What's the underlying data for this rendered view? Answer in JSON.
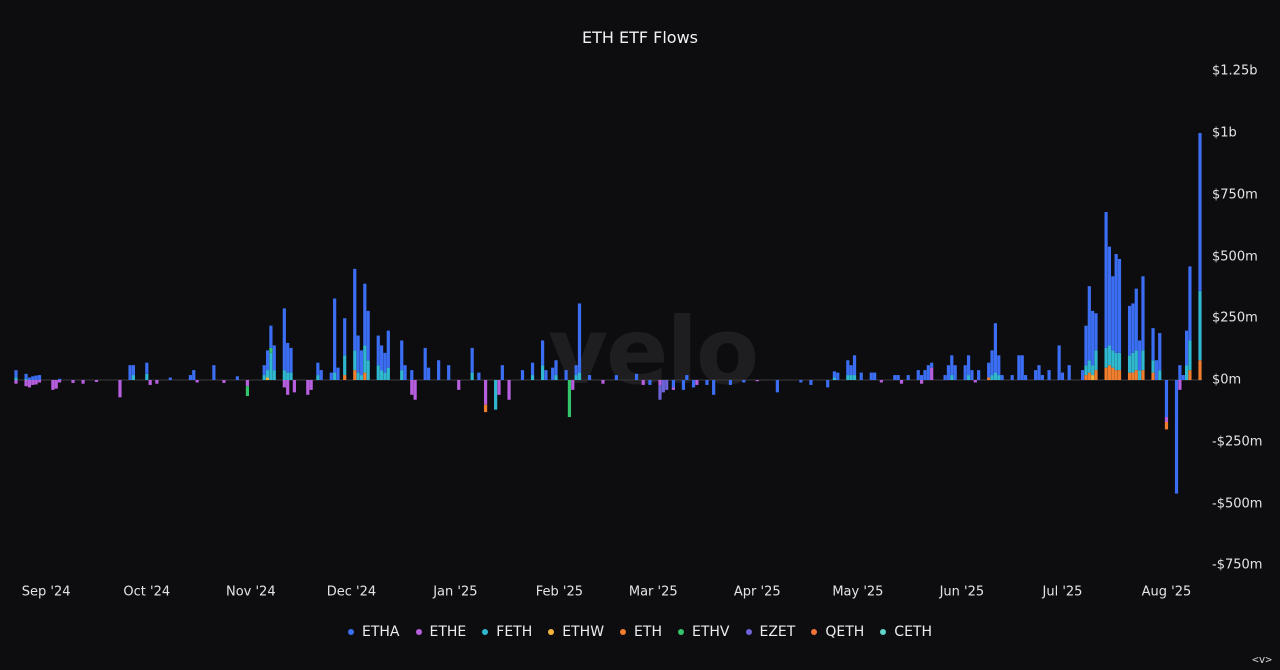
{
  "title": "ETH ETF Flows",
  "watermark": "velo",
  "nav": "<v>",
  "chart_data": {
    "type": "bar",
    "stacked": true,
    "title": "ETH ETF Flows",
    "xlabel": "",
    "ylabel": "",
    "ylim": [
      -800,
      1250
    ],
    "grid": false,
    "legend_position": "bottom",
    "y_ticks": [
      {
        "value": 1250,
        "label": "$1.25b"
      },
      {
        "value": 1000,
        "label": "$1b"
      },
      {
        "value": 750,
        "label": "$750m"
      },
      {
        "value": 500,
        "label": "$500m"
      },
      {
        "value": 250,
        "label": "$250m"
      },
      {
        "value": 0,
        "label": "$0m"
      },
      {
        "value": -250,
        "label": "-$250m"
      },
      {
        "value": -500,
        "label": "-$500m"
      },
      {
        "value": -750,
        "label": "-$750m"
      }
    ],
    "x_ticks": [
      {
        "date": "2024-09-01",
        "label": "Sep '24"
      },
      {
        "date": "2024-10-01",
        "label": "Oct '24"
      },
      {
        "date": "2024-11-01",
        "label": "Nov '24"
      },
      {
        "date": "2024-12-01",
        "label": "Dec '24"
      },
      {
        "date": "2025-01-01",
        "label": "Jan '25"
      },
      {
        "date": "2025-02-01",
        "label": "Feb '25"
      },
      {
        "date": "2025-03-01",
        "label": "Mar '25"
      },
      {
        "date": "2025-04-01",
        "label": "Apr '25"
      },
      {
        "date": "2025-05-01",
        "label": "May '25"
      },
      {
        "date": "2025-06-01",
        "label": "Jun '25"
      },
      {
        "date": "2025-07-01",
        "label": "Jul '25"
      },
      {
        "date": "2025-08-01",
        "label": "Aug '25"
      }
    ],
    "series_names": [
      "ETHA",
      "ETHE",
      "FETH",
      "ETHW",
      "ETH",
      "ETHV",
      "EZET",
      "QETH",
      "CETH"
    ],
    "colors": {
      "ETHA": "#3b6ef2",
      "ETHE": "#b85fe0",
      "FETH": "#2fb8d0",
      "ETHW": "#f5b43a",
      "ETH": "#f07e2e",
      "ETHV": "#34c46a",
      "EZET": "#6c63d8",
      "QETH": "#f0743a",
      "CETH": "#5fd6c8"
    },
    "positive_total_order": [
      "ETH",
      "ETHW",
      "FETH",
      "ETHA"
    ],
    "net_daily_flows": [
      {
        "date": "2024-08-23",
        "ETHA": 30,
        "ETHE": -15,
        "FETH": 10
      },
      {
        "date": "2024-08-26",
        "ETHA": 20,
        "ETHE": -25,
        "FETH": 5
      },
      {
        "date": "2024-08-27",
        "ETHA": 10,
        "ETHE": -30
      },
      {
        "date": "2024-08-28",
        "ETHA": 15,
        "ETHE": -20
      },
      {
        "date": "2024-08-29",
        "ETHA": 18,
        "ETHE": -18
      },
      {
        "date": "2024-08-30",
        "ETHA": 20,
        "ETHE": -10
      },
      {
        "date": "2024-09-03",
        "ETHE": -40
      },
      {
        "date": "2024-09-04",
        "ETHE": -35
      },
      {
        "date": "2024-09-05",
        "ETHA": 5,
        "ETHE": -10
      },
      {
        "date": "2024-09-09",
        "ETHE": -12
      },
      {
        "date": "2024-09-12",
        "ETHE": -15
      },
      {
        "date": "2024-09-16",
        "ETHE": -8
      },
      {
        "date": "2024-09-23",
        "ETHE": -70
      },
      {
        "date": "2024-09-26",
        "ETHA": 60
      },
      {
        "date": "2024-09-27",
        "ETHA": 40,
        "FETH": 20
      },
      {
        "date": "2024-10-01",
        "ETHA": 45,
        "FETH": 25
      },
      {
        "date": "2024-10-02",
        "ETHE": -20
      },
      {
        "date": "2024-10-04",
        "ETHE": -15
      },
      {
        "date": "2024-10-08",
        "ETHA": 10
      },
      {
        "date": "2024-10-14",
        "ETHA": 20
      },
      {
        "date": "2024-10-15",
        "ETHA": 40
      },
      {
        "date": "2024-10-16",
        "ETHE": -10
      },
      {
        "date": "2024-10-21",
        "ETHA": 60
      },
      {
        "date": "2024-10-24",
        "ETHE": -12
      },
      {
        "date": "2024-10-28",
        "ETHA": 15
      },
      {
        "date": "2024-10-31",
        "ETHE": -25,
        "ETHV": -40
      },
      {
        "date": "2024-11-05",
        "ETHA": 40,
        "FETH": 20
      },
      {
        "date": "2024-11-06",
        "ETHA": 80,
        "FETH": 30,
        "ETHW": 10
      },
      {
        "date": "2024-11-07",
        "ETHA": 90,
        "FETH": 110,
        "ETHV": 20
      },
      {
        "date": "2024-11-08",
        "ETHA": 100,
        "FETH": 40
      },
      {
        "date": "2024-11-11",
        "ETHA": 250,
        "FETH": 40,
        "ETHE": -30
      },
      {
        "date": "2024-11-12",
        "ETHA": 120,
        "FETH": 30,
        "ETHE": -60
      },
      {
        "date": "2024-11-13",
        "ETHA": 100,
        "FETH": 30
      },
      {
        "date": "2024-11-14",
        "ETHE": -50
      },
      {
        "date": "2024-11-18",
        "ETHE": -60
      },
      {
        "date": "2024-11-19",
        "ETHE": -40
      },
      {
        "date": "2024-11-21",
        "ETHA": 50,
        "FETH": 20
      },
      {
        "date": "2024-11-22",
        "ETHA": 40
      },
      {
        "date": "2024-11-25",
        "ETHA": 30
      },
      {
        "date": "2024-11-26",
        "ETHA": 300,
        "FETH": 30
      },
      {
        "date": "2024-11-27",
        "ETHA": 50
      },
      {
        "date": "2024-11-29",
        "ETHA": 150,
        "FETH": 80,
        "ETH": 20
      },
      {
        "date": "2024-12-02",
        "ETHA": 330,
        "FETH": 80,
        "ETH": 40
      },
      {
        "date": "2024-12-03",
        "ETHA": 150,
        "FETH": 30
      },
      {
        "date": "2024-12-04",
        "ETHA": 100,
        "FETH": 20
      },
      {
        "date": "2024-12-05",
        "ETHA": 250,
        "FETH": 110,
        "ETH": 30
      },
      {
        "date": "2024-12-06",
        "ETHA": 200,
        "FETH": 80
      },
      {
        "date": "2024-12-09",
        "ETHA": 120,
        "FETH": 60
      },
      {
        "date": "2024-12-10",
        "ETHA": 100,
        "FETH": 40
      },
      {
        "date": "2024-12-11",
        "ETHA": 80,
        "FETH": 30
      },
      {
        "date": "2024-12-12",
        "ETHA": 150,
        "FETH": 50
      },
      {
        "date": "2024-12-16",
        "ETHA": 120,
        "FETH": 40
      },
      {
        "date": "2024-12-17",
        "ETHA": 60
      },
      {
        "date": "2024-12-19",
        "ETHE": -60,
        "ETHA": 40
      },
      {
        "date": "2024-12-20",
        "ETHE": -80
      },
      {
        "date": "2024-12-23",
        "ETHA": 130
      },
      {
        "date": "2024-12-24",
        "ETHA": 50
      },
      {
        "date": "2024-12-27",
        "ETHA": 80
      },
      {
        "date": "2024-12-30",
        "ETHA": 60
      },
      {
        "date": "2025-01-02",
        "ETHE": -40
      },
      {
        "date": "2025-01-06",
        "ETHA": 100,
        "FETH": 30
      },
      {
        "date": "2025-01-08",
        "ETHA": 30
      },
      {
        "date": "2025-01-10",
        "ETHE": -100,
        "ETH": -30
      },
      {
        "date": "2025-01-13",
        "FETH": -120
      },
      {
        "date": "2025-01-14",
        "ETHE": -60
      },
      {
        "date": "2025-01-15",
        "ETHA": 60
      },
      {
        "date": "2025-01-17",
        "ETHE": -80
      },
      {
        "date": "2025-01-21",
        "ETHA": 40
      },
      {
        "date": "2025-01-24",
        "ETHA": 50,
        "FETH": 20
      },
      {
        "date": "2025-01-27",
        "ETHA": 100,
        "FETH": 60
      },
      {
        "date": "2025-01-28",
        "ETHA": 40
      },
      {
        "date": "2025-01-30",
        "ETHA": 50
      },
      {
        "date": "2025-01-31",
        "ETHA": 60,
        "FETH": 20
      },
      {
        "date": "2025-02-03",
        "ETHA": 40
      },
      {
        "date": "2025-02-04",
        "ETHV": -150
      },
      {
        "date": "2025-02-05",
        "ETHE": -40
      },
      {
        "date": "2025-02-06",
        "ETHA": 40,
        "FETH": 20
      },
      {
        "date": "2025-02-07",
        "ETHA": 280,
        "FETH": 30
      },
      {
        "date": "2025-02-10",
        "ETHA": 20
      },
      {
        "date": "2025-02-14",
        "ETHE": -15
      },
      {
        "date": "2025-02-18",
        "ETHA": 20
      },
      {
        "date": "2025-02-24",
        "ETHA": 25
      },
      {
        "date": "2025-02-26",
        "ETHE": -20
      },
      {
        "date": "2025-02-28",
        "ETHA": -20
      },
      {
        "date": "2025-03-03",
        "EZET": -60,
        "ETHE": -20
      },
      {
        "date": "2025-03-04",
        "EZET": -50
      },
      {
        "date": "2025-03-05",
        "EZET": -40
      },
      {
        "date": "2025-03-07",
        "ETHA": -30,
        "ETHE": -10
      },
      {
        "date": "2025-03-10",
        "ETHA": -40
      },
      {
        "date": "2025-03-11",
        "ETHA": 20
      },
      {
        "date": "2025-03-13",
        "ETHA": -30
      },
      {
        "date": "2025-03-14",
        "ETHE": -20
      },
      {
        "date": "2025-03-17",
        "ETHA": -20
      },
      {
        "date": "2025-03-19",
        "ETHA": -60
      },
      {
        "date": "2025-03-24",
        "ETHA": -20
      },
      {
        "date": "2025-03-28",
        "ETHA": -10
      },
      {
        "date": "2025-04-01",
        "ETHE": -5
      },
      {
        "date": "2025-04-07",
        "ETHA": -50
      },
      {
        "date": "2025-04-14",
        "ETHA": -10
      },
      {
        "date": "2025-04-17",
        "ETHA": -20
      },
      {
        "date": "2025-04-22",
        "ETHA": -30
      },
      {
        "date": "2025-04-24",
        "ETHA": 25,
        "FETH": 10
      },
      {
        "date": "2025-04-25",
        "ETHA": 30
      },
      {
        "date": "2025-04-28",
        "ETHA": 60,
        "FETH": 20
      },
      {
        "date": "2025-04-29",
        "ETHA": 40,
        "FETH": 20
      },
      {
        "date": "2025-04-30",
        "ETHA": 80,
        "FETH": 20
      },
      {
        "date": "2025-05-02",
        "ETHA": 30
      },
      {
        "date": "2025-05-05",
        "ETHA": 30
      },
      {
        "date": "2025-05-06",
        "ETHA": 30
      },
      {
        "date": "2025-05-08",
        "ETHE": -10
      },
      {
        "date": "2025-05-12",
        "ETHA": 20
      },
      {
        "date": "2025-05-13",
        "ETHA": 20
      },
      {
        "date": "2025-05-14",
        "ETHE": -15
      },
      {
        "date": "2025-05-16",
        "ETHA": 20
      },
      {
        "date": "2025-05-19",
        "ETHA": 40
      },
      {
        "date": "2025-05-20",
        "ETHA": 20,
        "ETHE": -15
      },
      {
        "date": "2025-05-21",
        "ETHA": 40
      },
      {
        "date": "2025-05-22",
        "ETHA": 60
      },
      {
        "date": "2025-05-23",
        "ETHE": 50,
        "ETHA": 20
      },
      {
        "date": "2025-05-27",
        "ETHA": 20
      },
      {
        "date": "2025-05-28",
        "ETHA": 60
      },
      {
        "date": "2025-05-29",
        "ETHA": 80,
        "FETH": 20
      },
      {
        "date": "2025-05-30",
        "ETHA": 60
      },
      {
        "date": "2025-06-02",
        "ETHA": 60
      },
      {
        "date": "2025-06-03",
        "ETHA": 80,
        "FETH": 20
      },
      {
        "date": "2025-06-04",
        "ETHA": 40
      },
      {
        "date": "2025-06-05",
        "ETHE": -10
      },
      {
        "date": "2025-06-06",
        "ETHA": 40
      },
      {
        "date": "2025-06-09",
        "ETHA": 60,
        "ETH": 10
      },
      {
        "date": "2025-06-10",
        "ETHA": 100,
        "FETH": 20
      },
      {
        "date": "2025-06-11",
        "ETHA": 200,
        "FETH": 30
      },
      {
        "date": "2025-06-12",
        "ETHA": 80,
        "FETH": 20
      },
      {
        "date": "2025-06-13",
        "ETHA": 20
      },
      {
        "date": "2025-06-16",
        "ETHA": 20
      },
      {
        "date": "2025-06-18",
        "ETHA": 100
      },
      {
        "date": "2025-06-19",
        "ETHA": 100
      },
      {
        "date": "2025-06-20",
        "ETHA": 20
      },
      {
        "date": "2025-06-23",
        "ETHA": 40
      },
      {
        "date": "2025-06-24",
        "ETHA": 60
      },
      {
        "date": "2025-06-25",
        "ETHA": 20
      },
      {
        "date": "2025-06-27",
        "ETHA": 40
      },
      {
        "date": "2025-06-30",
        "ETHA": 140
      },
      {
        "date": "2025-07-01",
        "ETHA": 30
      },
      {
        "date": "2025-07-03",
        "ETHA": 60
      },
      {
        "date": "2025-07-07",
        "ETHA": 40
      },
      {
        "date": "2025-07-08",
        "ETHA": 160,
        "FETH": 40,
        "ETH": 20
      },
      {
        "date": "2025-07-09",
        "ETHA": 300,
        "FETH": 50,
        "ETH": 30
      },
      {
        "date": "2025-07-10",
        "ETHA": 220,
        "FETH": 40,
        "ETHW": 20
      },
      {
        "date": "2025-07-11",
        "ETHA": 150,
        "FETH": 80,
        "ETH": 40
      },
      {
        "date": "2025-07-14",
        "ETHA": 550,
        "FETH": 80,
        "ETH": 50
      },
      {
        "date": "2025-07-15",
        "ETHA": 400,
        "FETH": 80,
        "ETH": 60
      },
      {
        "date": "2025-07-16",
        "ETHA": 300,
        "FETH": 70,
        "ETH": 50
      },
      {
        "date": "2025-07-17",
        "ETHA": 400,
        "FETH": 70,
        "ETH": 40
      },
      {
        "date": "2025-07-18",
        "ETHA": 380,
        "FETH": 70,
        "ETH": 40
      },
      {
        "date": "2025-07-21",
        "ETHA": 200,
        "FETH": 70,
        "ETH": 30
      },
      {
        "date": "2025-07-22",
        "ETHA": 200,
        "FETH": 80,
        "ETH": 30
      },
      {
        "date": "2025-07-23",
        "ETHA": 250,
        "FETH": 80,
        "ETH": 40
      },
      {
        "date": "2025-07-24",
        "ETHA": 120,
        "FETH": 40
      },
      {
        "date": "2025-07-25",
        "ETHA": 300,
        "FETH": 80,
        "ETH": 40
      },
      {
        "date": "2025-07-28",
        "ETHA": 130,
        "FETH": 50,
        "ETH": 30
      },
      {
        "date": "2025-07-29",
        "ETHA": 80
      },
      {
        "date": "2025-07-30",
        "ETHA": 150,
        "FETH": 40
      },
      {
        "date": "2025-08-01",
        "ETHA": -150,
        "ETHE": -20,
        "ETH": -30
      },
      {
        "date": "2025-08-04",
        "ETHA": -460
      },
      {
        "date": "2025-08-05",
        "ETHA": 60,
        "ETHE": -40
      },
      {
        "date": "2025-08-06",
        "ETHA": 20
      },
      {
        "date": "2025-08-07",
        "ETHA": 140,
        "FETH": 60
      },
      {
        "date": "2025-08-08",
        "ETHA": 300,
        "FETH": 120,
        "ETH": 40
      },
      {
        "date": "2025-08-11",
        "ETHA": 640,
        "FETH": 280,
        "ETH": 80
      }
    ]
  },
  "legend": {
    "items": [
      {
        "label": "ETHA",
        "color": "#3b6ef2"
      },
      {
        "label": "ETHE",
        "color": "#b85fe0"
      },
      {
        "label": "FETH",
        "color": "#2fb8d0"
      },
      {
        "label": "ETHW",
        "color": "#f5b43a"
      },
      {
        "label": "ETH",
        "color": "#f07e2e"
      },
      {
        "label": "ETHV",
        "color": "#34c46a"
      },
      {
        "label": "EZET",
        "color": "#6c63d8"
      },
      {
        "label": "QETH",
        "color": "#f0743a"
      },
      {
        "label": "CETH",
        "color": "#5fd6c8"
      }
    ]
  }
}
